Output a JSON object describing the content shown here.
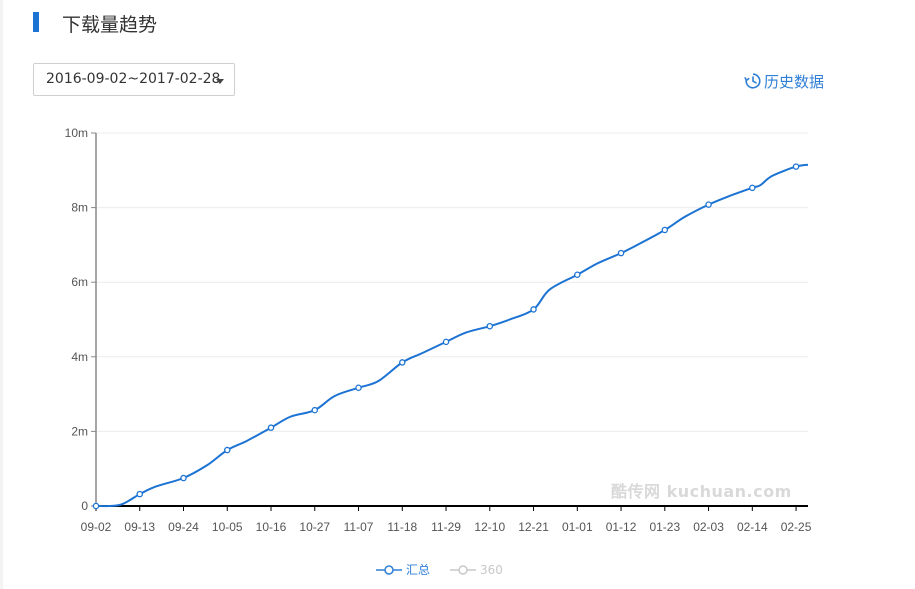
{
  "header": {
    "title": "下载量趋势"
  },
  "date_range": {
    "value": "2016-09-02~2017-02-28"
  },
  "history_link": {
    "label": "历史数据",
    "icon": "history-icon"
  },
  "watermark": "酷传网 kuchuan.com",
  "legend": [
    {
      "label": "汇总",
      "color": "#1c73d3"
    },
    {
      "label": "360",
      "color": "#c8c8c8"
    }
  ],
  "chart_data": {
    "type": "line",
    "xlabel": "",
    "ylabel": "",
    "ylim": [
      0,
      10000000
    ],
    "y_ticks": [
      {
        "value": 0,
        "label": "0"
      },
      {
        "value": 2000000,
        "label": "2m"
      },
      {
        "value": 4000000,
        "label": "4m"
      },
      {
        "value": 6000000,
        "label": "6m"
      },
      {
        "value": 8000000,
        "label": "8m"
      },
      {
        "value": 10000000,
        "label": "10m"
      }
    ],
    "x_ticks": [
      "09-02",
      "09-13",
      "09-24",
      "10-05",
      "10-16",
      "10-27",
      "11-07",
      "11-18",
      "11-29",
      "12-10",
      "12-21",
      "01-01",
      "01-12",
      "01-23",
      "02-03",
      "02-14",
      "02-25"
    ],
    "x_range": [
      "2016-09-02",
      "2017-02-28"
    ],
    "grid": true,
    "legend_position": "bottom-center",
    "series": [
      {
        "name": "汇总",
        "color": "#1c73d3",
        "x": [
          "2016-09-02",
          "2016-09-08",
          "2016-09-13",
          "2016-09-17",
          "2016-09-24",
          "2016-09-30",
          "2016-10-05",
          "2016-10-10",
          "2016-10-16",
          "2016-10-21",
          "2016-10-27",
          "2016-11-01",
          "2016-11-07",
          "2016-11-12",
          "2016-11-18",
          "2016-11-23",
          "2016-11-29",
          "2016-12-04",
          "2016-12-10",
          "2016-12-15",
          "2016-12-21",
          "2016-12-25",
          "2017-01-01",
          "2017-01-06",
          "2017-01-12",
          "2017-01-17",
          "2017-01-23",
          "2017-01-28",
          "2017-02-03",
          "2017-02-08",
          "2017-02-14",
          "2017-02-16",
          "2017-02-19",
          "2017-02-25",
          "2017-02-28"
        ],
        "values": [
          0,
          30000,
          320000,
          520000,
          750000,
          1100000,
          1500000,
          1750000,
          2100000,
          2400000,
          2570000,
          2950000,
          3170000,
          3350000,
          3850000,
          4100000,
          4400000,
          4650000,
          4820000,
          5000000,
          5270000,
          5800000,
          6200000,
          6500000,
          6780000,
          7050000,
          7400000,
          7750000,
          8080000,
          8300000,
          8530000,
          8600000,
          8850000,
          9100000,
          9150000
        ],
        "markers": [
          "2016-09-02",
          "2016-09-13",
          "2016-09-24",
          "2016-10-05",
          "2016-10-16",
          "2016-10-27",
          "2016-11-07",
          "2016-11-18",
          "2016-11-29",
          "2016-12-10",
          "2016-12-21",
          "2017-01-01",
          "2017-01-12",
          "2017-01-23",
          "2017-02-03",
          "2017-02-14",
          "2017-02-25"
        ]
      },
      {
        "name": "360",
        "color": "#c8c8c8",
        "hidden": true,
        "x": [],
        "values": []
      }
    ]
  }
}
